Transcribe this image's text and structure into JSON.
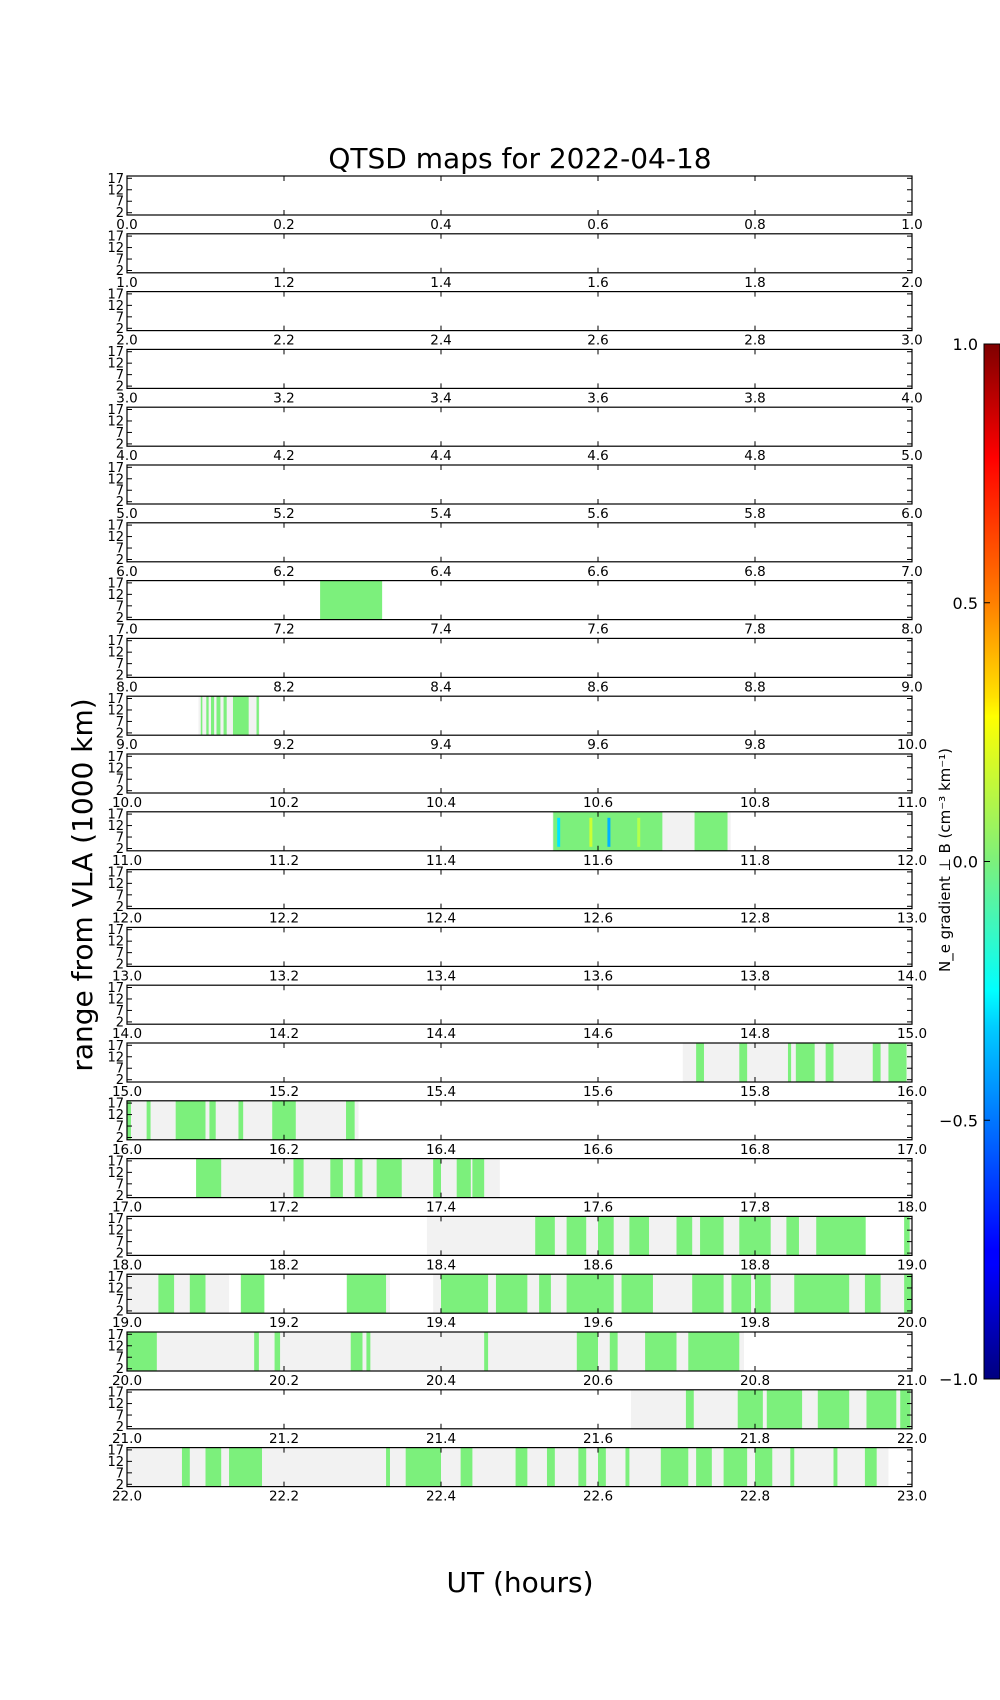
{
  "chart_data": {
    "type": "heatmap",
    "title": "QTSD maps for 2022-04-18",
    "xlabel": "UT (hours)",
    "ylabel": "range from VLA (1000 km)",
    "ytick_labels": [
      "17",
      "12",
      "7",
      "2"
    ],
    "yticks": [
      17,
      12,
      7,
      2
    ],
    "ylim": [
      1,
      18
    ],
    "colorbar": {
      "label_html": "N<tspan font-style='italic' font-size='11'>e</tspan>",
      "label": "N_e gradient ⊥ B (cm⁻³ km⁻¹)",
      "min": -1.0,
      "max": 1.0,
      "ticks": [
        1.0,
        0.5,
        0.0,
        -0.5,
        -1.0
      ],
      "tick_labels": [
        "1.0",
        "0.5",
        "0.0",
        "−0.5",
        "−1.0"
      ],
      "colormap": "jet"
    },
    "colors": {
      "coverage": "#f2f2f2",
      "near_zero": "#7cf07c",
      "frame": "#000000"
    },
    "panels": [
      {
        "start": 0,
        "end": 1,
        "tick_labels": [
          "0.0",
          "0.2",
          "0.4",
          "0.6",
          "0.8",
          "1.0"
        ],
        "coverage": [],
        "data": []
      },
      {
        "start": 1,
        "end": 2,
        "tick_labels": [
          "1.0",
          "1.2",
          "1.4",
          "1.6",
          "1.8",
          "2.0"
        ],
        "coverage": [],
        "data": []
      },
      {
        "start": 2,
        "end": 3,
        "tick_labels": [
          "2.0",
          "2.2",
          "2.4",
          "2.6",
          "2.8",
          "3.0"
        ],
        "coverage": [],
        "data": []
      },
      {
        "start": 3,
        "end": 4,
        "tick_labels": [
          "3.0",
          "3.2",
          "3.4",
          "3.6",
          "3.8",
          "4.0"
        ],
        "coverage": [],
        "data": []
      },
      {
        "start": 4,
        "end": 5,
        "tick_labels": [
          "4.0",
          "4.2",
          "4.4",
          "4.6",
          "4.8",
          "5.0"
        ],
        "coverage": [],
        "data": []
      },
      {
        "start": 5,
        "end": 6,
        "tick_labels": [
          "5.0",
          "5.2",
          "5.4",
          "5.6",
          "5.8",
          "6.0"
        ],
        "coverage": [],
        "data": []
      },
      {
        "start": 6,
        "end": 7,
        "tick_labels": [
          "6.0",
          "6.2",
          "6.4",
          "6.6",
          "6.8",
          "7.0"
        ],
        "coverage": [],
        "data": []
      },
      {
        "start": 7,
        "end": 8,
        "tick_labels": [
          "7.0",
          "7.2",
          "7.4",
          "7.6",
          "7.8",
          "8.0"
        ],
        "coverage": [
          [
            7.246,
            7.325
          ]
        ],
        "data": [
          [
            7.246,
            7.325
          ]
        ]
      },
      {
        "start": 8,
        "end": 9,
        "tick_labels": [
          "8.0",
          "8.2",
          "8.4",
          "8.6",
          "8.8",
          "9.0"
        ],
        "coverage": [],
        "data": []
      },
      {
        "start": 9,
        "end": 10,
        "tick_labels": [
          "9.0",
          "9.2",
          "9.4",
          "9.6",
          "9.8",
          "10.0"
        ],
        "coverage": [
          [
            9.091,
            9.169
          ]
        ],
        "data": [
          [
            9.094,
            9.096
          ],
          [
            9.101,
            9.104
          ],
          [
            9.107,
            9.111
          ],
          [
            9.114,
            9.119
          ],
          [
            9.123,
            9.127
          ],
          [
            9.135,
            9.155
          ],
          [
            9.165,
            9.168
          ]
        ]
      },
      {
        "start": 10,
        "end": 11,
        "tick_labels": [
          "10.0",
          "10.2",
          "10.4",
          "10.6",
          "10.8",
          "11.0"
        ],
        "coverage": [],
        "data": []
      },
      {
        "start": 11,
        "end": 12,
        "tick_labels": [
          "11.0",
          "11.2",
          "11.4",
          "11.6",
          "11.8",
          "12.0"
        ],
        "coverage": [
          [
            11.542,
            11.769
          ]
        ],
        "data": [
          [
            11.543,
            11.682
          ],
          [
            11.723,
            11.765
          ]
        ],
        "highlights": [
          {
            "t": 11.548,
            "v": -0.3
          },
          {
            "t": 11.589,
            "v": 0.15
          },
          {
            "t": 11.612,
            "v": -0.4
          },
          {
            "t": 11.65,
            "v": 0.1
          }
        ]
      },
      {
        "start": 12,
        "end": 13,
        "tick_labels": [
          "12.0",
          "12.2",
          "12.4",
          "12.6",
          "12.8",
          "13.0"
        ],
        "coverage": [],
        "data": []
      },
      {
        "start": 13,
        "end": 14,
        "tick_labels": [
          "13.0",
          "13.2",
          "13.4",
          "13.6",
          "13.8",
          "14.0"
        ],
        "coverage": [],
        "data": []
      },
      {
        "start": 14,
        "end": 15,
        "tick_labels": [
          "14.0",
          "14.2",
          "14.4",
          "14.6",
          "14.8",
          "15.0"
        ],
        "coverage": [],
        "data": []
      },
      {
        "start": 15,
        "end": 16,
        "tick_labels": [
          "15.0",
          "15.2",
          "15.4",
          "15.6",
          "15.8",
          "16.0"
        ],
        "coverage": [
          [
            15.708,
            16.0
          ]
        ],
        "data": [
          [
            15.725,
            15.735
          ],
          [
            15.78,
            15.79
          ],
          [
            15.842,
            15.846
          ],
          [
            15.852,
            15.876
          ],
          [
            15.89,
            15.9
          ],
          [
            15.95,
            15.96
          ],
          [
            15.97,
            15.993
          ]
        ]
      },
      {
        "start": 16,
        "end": 17,
        "tick_labels": [
          "16.0",
          "16.2",
          "16.4",
          "16.6",
          "16.8",
          "17.0"
        ],
        "coverage": [
          [
            16.0,
            16.295
          ]
        ],
        "data": [
          [
            16.0,
            16.005
          ],
          [
            16.025,
            16.03
          ],
          [
            16.062,
            16.1
          ],
          [
            16.105,
            16.113
          ],
          [
            16.142,
            16.148
          ],
          [
            16.185,
            16.215
          ],
          [
            16.279,
            16.29
          ]
        ]
      },
      {
        "start": 17,
        "end": 18,
        "tick_labels": [
          "17.0",
          "17.2",
          "17.4",
          "17.6",
          "17.8",
          "18.0"
        ],
        "coverage": [
          [
            17.088,
            17.475
          ]
        ],
        "data": [
          [
            17.088,
            17.12
          ],
          [
            17.212,
            17.225
          ],
          [
            17.259,
            17.275
          ],
          [
            17.29,
            17.3
          ],
          [
            17.318,
            17.35
          ],
          [
            17.39,
            17.4
          ],
          [
            17.42,
            17.438
          ],
          [
            17.44,
            17.455
          ]
        ]
      },
      {
        "start": 18,
        "end": 19,
        "tick_labels": [
          "18.0",
          "18.2",
          "18.4",
          "18.6",
          "18.8",
          "19.0"
        ],
        "coverage": [
          [
            18.382,
            18.94
          ],
          [
            18.99,
            19.0
          ]
        ],
        "data": [
          [
            18.52,
            18.545
          ],
          [
            18.56,
            18.585
          ],
          [
            18.6,
            18.62
          ],
          [
            18.64,
            18.665
          ],
          [
            18.7,
            18.72
          ],
          [
            18.73,
            18.76
          ],
          [
            18.78,
            18.82
          ],
          [
            18.84,
            18.856
          ],
          [
            18.878,
            18.941
          ],
          [
            18.99,
            18.997
          ]
        ]
      },
      {
        "start": 19,
        "end": 20,
        "tick_labels": [
          "19.0",
          "19.2",
          "19.4",
          "19.6",
          "19.8",
          "20.0"
        ],
        "coverage": [
          [
            19.0,
            19.13
          ],
          [
            19.28,
            19.335
          ],
          [
            19.39,
            20.0
          ]
        ],
        "data": [
          [
            19.04,
            19.06
          ],
          [
            19.08,
            19.1
          ],
          [
            19.145,
            19.175
          ],
          [
            19.28,
            19.33
          ],
          [
            19.4,
            19.46
          ],
          [
            19.47,
            19.51
          ],
          [
            19.525,
            19.54
          ],
          [
            19.56,
            19.62
          ],
          [
            19.63,
            19.67
          ],
          [
            19.72,
            19.76
          ],
          [
            19.77,
            19.795
          ],
          [
            19.8,
            19.82
          ],
          [
            19.85,
            19.92
          ],
          [
            19.94,
            19.96
          ],
          [
            19.99,
            20.0
          ]
        ]
      },
      {
        "start": 20,
        "end": 21,
        "tick_labels": [
          "20.0",
          "20.2",
          "20.4",
          "20.6",
          "20.8",
          "21.0"
        ],
        "coverage": [
          [
            20.0,
            20.786
          ]
        ],
        "data": [
          [
            20.0,
            20.038
          ],
          [
            20.162,
            20.168
          ],
          [
            20.188,
            20.195
          ],
          [
            20.285,
            20.3
          ],
          [
            20.305,
            20.31
          ],
          [
            20.455,
            20.46
          ],
          [
            20.573,
            20.6
          ],
          [
            20.615,
            20.625
          ],
          [
            20.66,
            20.7
          ],
          [
            20.715,
            20.78
          ]
        ]
      },
      {
        "start": 21,
        "end": 22,
        "tick_labels": [
          "21.0",
          "21.2",
          "21.4",
          "21.6",
          "21.8",
          "22.0"
        ],
        "coverage": [
          [
            21.642,
            22.0
          ]
        ],
        "data": [
          [
            21.712,
            21.722
          ],
          [
            21.778,
            21.81
          ],
          [
            21.815,
            21.86
          ],
          [
            21.88,
            21.92
          ],
          [
            21.942,
            21.98
          ],
          [
            21.985,
            21.998
          ]
        ]
      },
      {
        "start": 22,
        "end": 23,
        "tick_labels": [
          "22.0",
          "22.2",
          "22.4",
          "22.6",
          "22.8",
          "23.0"
        ],
        "coverage": [
          [
            22.0,
            22.97
          ]
        ],
        "data": [
          [
            22.07,
            22.08
          ],
          [
            22.1,
            22.12
          ],
          [
            22.13,
            22.172
          ],
          [
            22.33,
            22.335
          ],
          [
            22.355,
            22.4
          ],
          [
            22.425,
            22.44
          ],
          [
            22.495,
            22.51
          ],
          [
            22.535,
            22.545
          ],
          [
            22.575,
            22.585
          ],
          [
            22.6,
            22.61
          ],
          [
            22.635,
            22.64
          ],
          [
            22.68,
            22.715
          ],
          [
            22.725,
            22.745
          ],
          [
            22.76,
            22.79
          ],
          [
            22.8,
            22.822
          ],
          [
            22.845,
            22.85
          ],
          [
            22.9,
            22.905
          ],
          [
            22.94,
            22.955
          ]
        ]
      }
    ]
  }
}
